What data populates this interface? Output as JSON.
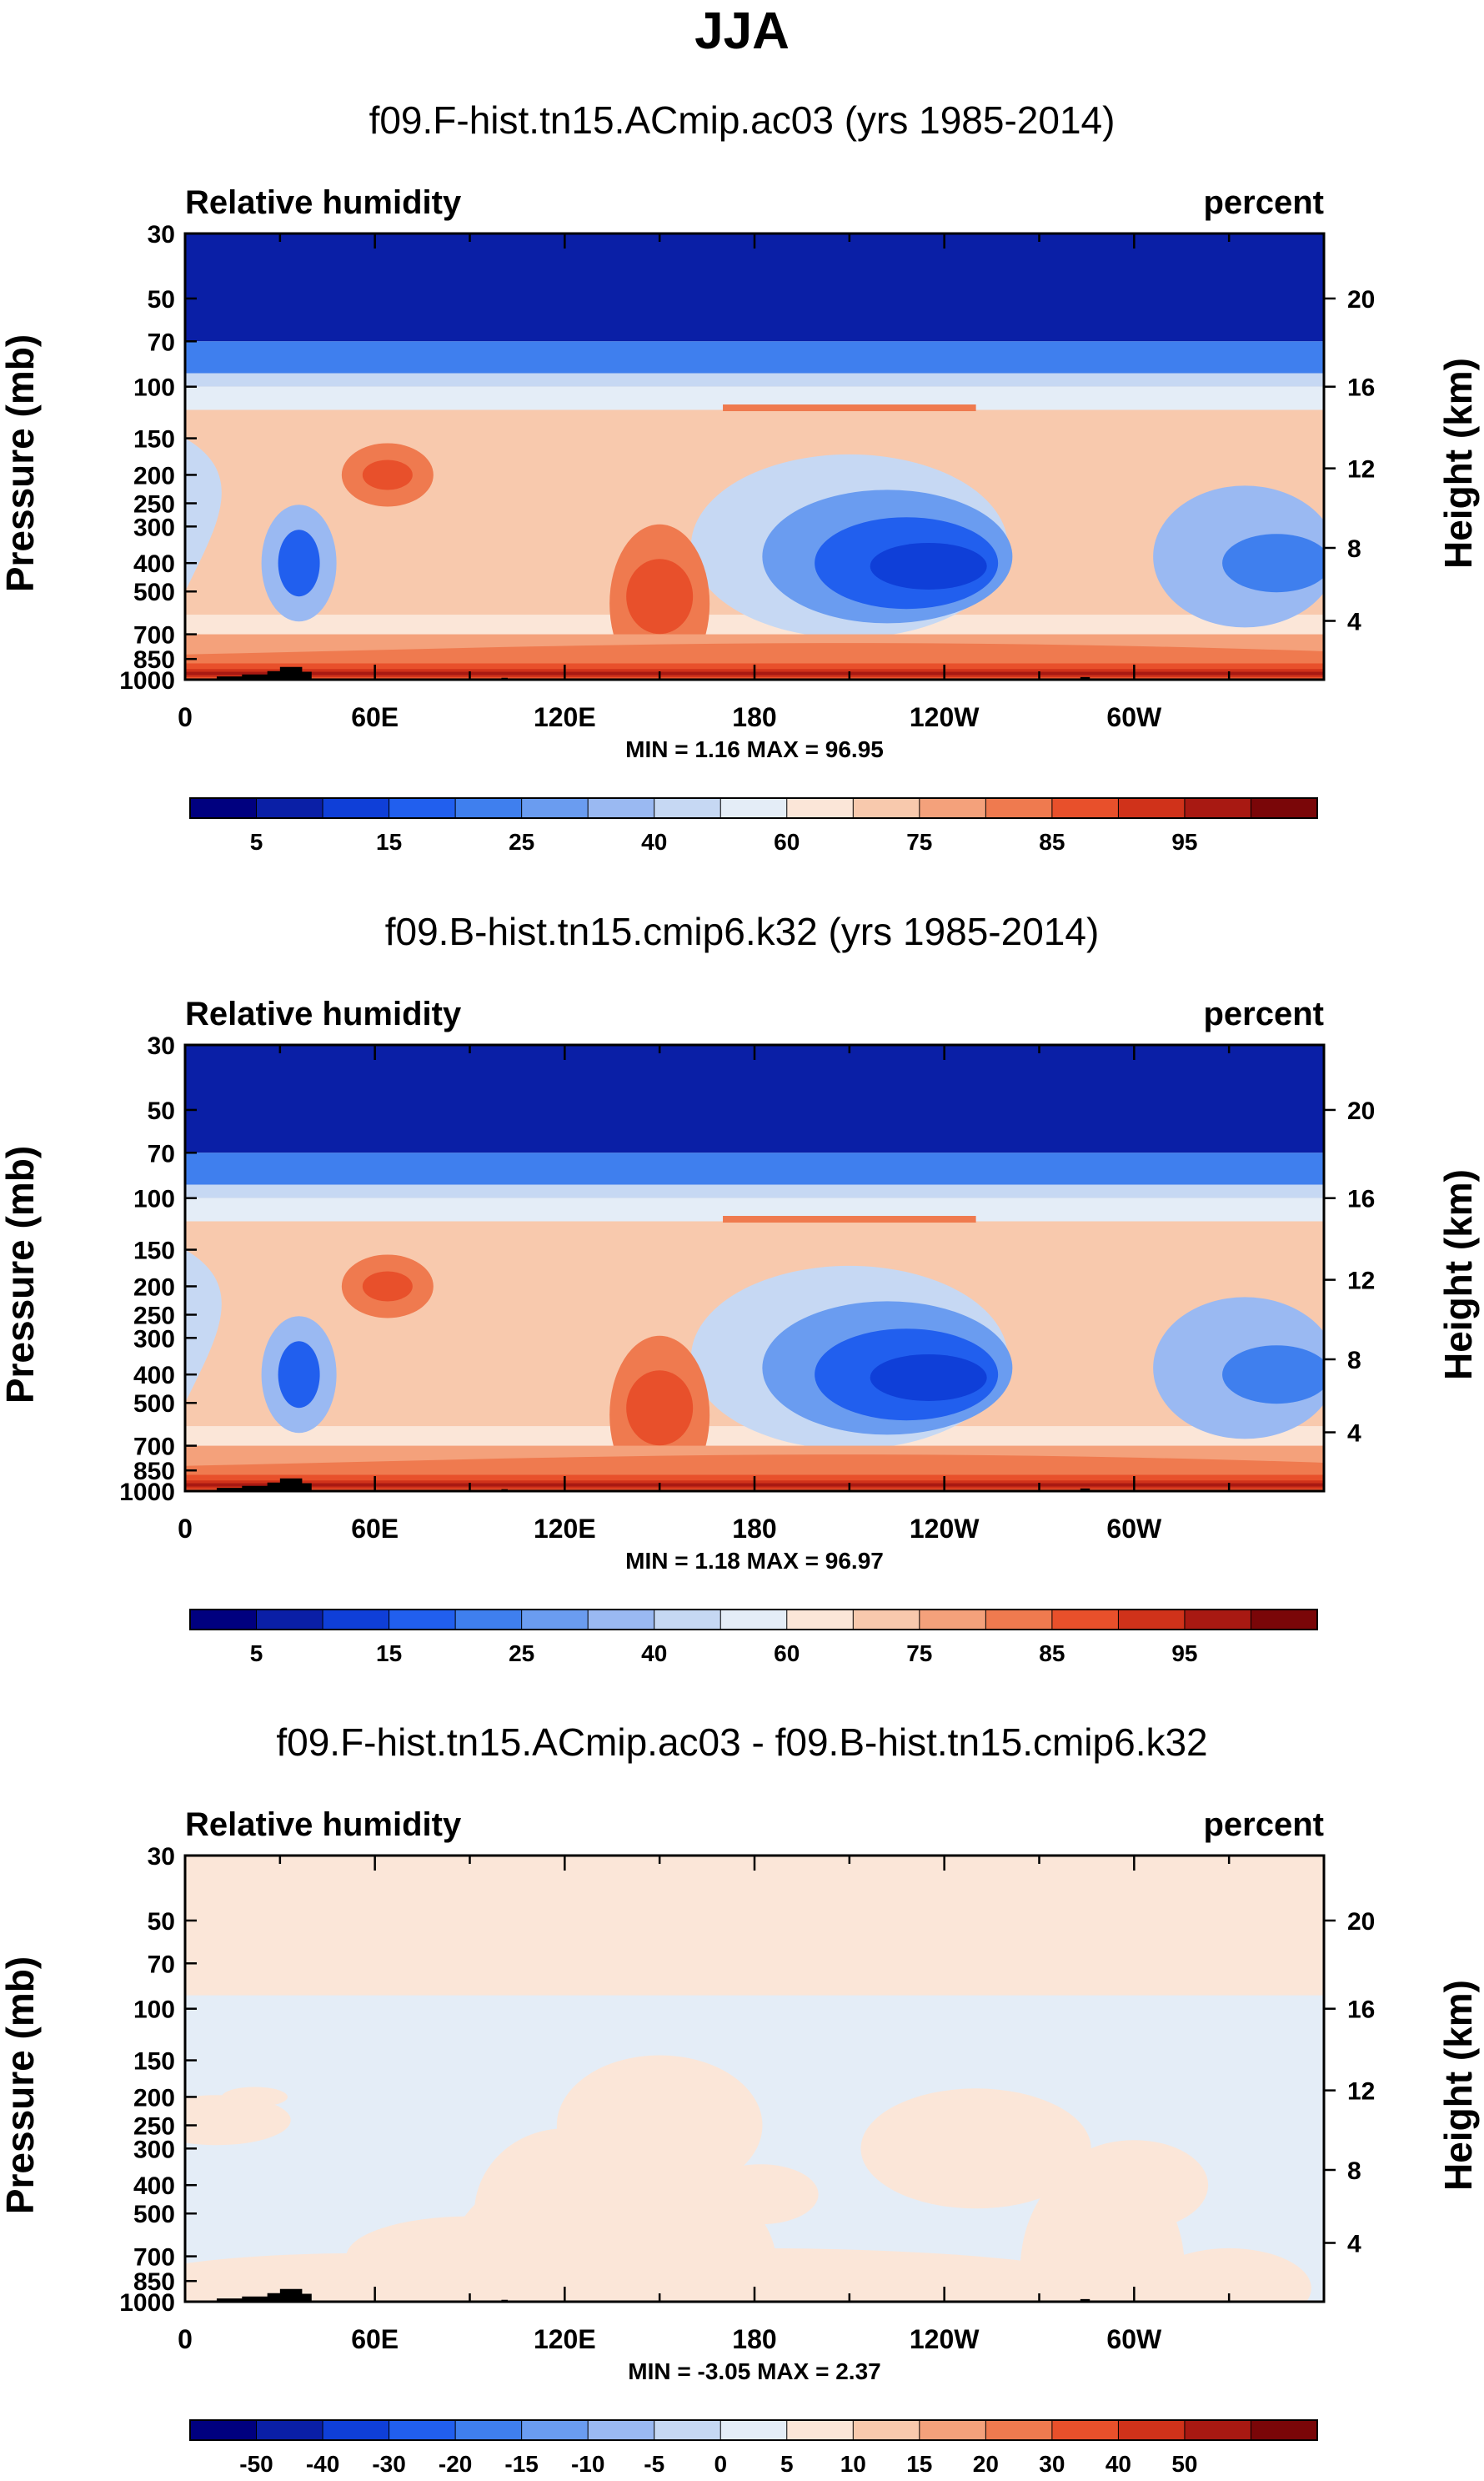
{
  "figure": {
    "season": "JJA"
  },
  "colors": {
    "diverging": [
      "#00007f",
      "#0a1fa6",
      "#0f3fd8",
      "#215fee",
      "#3f7fee",
      "#6a9cf0",
      "#9ab9f2",
      "#c6d8f3",
      "#e4edf7",
      "#fbe6d8",
      "#f8c9ad",
      "#f4a17b",
      "#ef7a4f",
      "#e8502b",
      "#d0321a",
      "#a81912",
      "#7a0608"
    ],
    "land": "#000000",
    "frame": "#000000"
  },
  "panels": [
    {
      "id": "panel-1",
      "title": "f09.F-hist.tn15.ACmip.ac03 (yrs 1985-2014)",
      "left_label": "Relative humidity",
      "right_label": "percent",
      "stats": "MIN =   1.16  MAX =  96.95",
      "variant": "field",
      "colorbar_labels": [
        "5",
        "15",
        "25",
        "40",
        "60",
        "75",
        "85",
        "95"
      ]
    },
    {
      "id": "panel-2",
      "title": "f09.B-hist.tn15.cmip6.k32 (yrs 1985-2014)",
      "left_label": "Relative humidity",
      "right_label": "percent",
      "stats": "MIN =   1.18  MAX =  96.97",
      "variant": "field",
      "colorbar_labels": [
        "5",
        "15",
        "25",
        "40",
        "60",
        "75",
        "85",
        "95"
      ]
    },
    {
      "id": "panel-3",
      "title": "f09.F-hist.tn15.ACmip.ac03 - f09.B-hist.tn15.cmip6.k32",
      "left_label": "Relative humidity",
      "right_label": "percent",
      "stats": "MIN =  -3.05  MAX =   2.37",
      "variant": "diff",
      "colorbar_labels": [
        "-50",
        "-40",
        "-30",
        "-20",
        "-15",
        "-10",
        "-5",
        "0",
        "5",
        "10",
        "15",
        "20",
        "30",
        "40",
        "50"
      ]
    }
  ],
  "chart_data": {
    "type": "heatmap",
    "x_ticks": [
      "0",
      "60E",
      "120E",
      "180",
      "120W",
      "60W"
    ],
    "x_tick_values": [
      0,
      60,
      120,
      180,
      240,
      300
    ],
    "xlim": [
      0,
      360
    ],
    "y_label": "Pressure (mb)",
    "y_ticks": [
      "30",
      "50",
      "70",
      "100",
      "150",
      "200",
      "250",
      "300",
      "400",
      "500",
      "700",
      "850",
      "1000"
    ],
    "y_tick_values": [
      30,
      50,
      70,
      100,
      150,
      200,
      250,
      300,
      400,
      500,
      700,
      850,
      1000
    ],
    "ylim": [
      1000,
      30
    ],
    "y_scale": "log",
    "y2_label": "Height (km)",
    "y2_ticks": [
      "20",
      "16",
      "12",
      "8",
      "4"
    ],
    "y2_tick_pressure": [
      50,
      100,
      190,
      355,
      630
    ],
    "field_levels": [
      5,
      10,
      15,
      20,
      25,
      30,
      40,
      50,
      60,
      70,
      75,
      80,
      85,
      90,
      95
    ],
    "diff_levels": [
      -50,
      -40,
      -30,
      -20,
      -15,
      -10,
      -5,
      0,
      5,
      10,
      15,
      20,
      30,
      40,
      50
    ]
  }
}
